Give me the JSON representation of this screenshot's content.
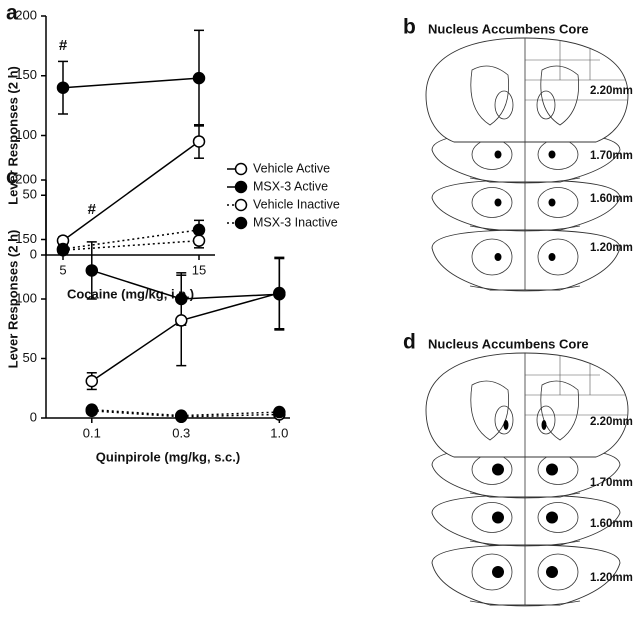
{
  "chart_data": [
    {
      "type": "line",
      "panel": "a",
      "xlabel": "Cocaine (mg/kg, i.p.)",
      "ylabel": "Lever Responses (2 h)",
      "categories": [
        "5",
        "15"
      ],
      "ylim": [
        0,
        200
      ],
      "yticks": [
        0,
        50,
        100,
        150,
        200
      ],
      "annotation": "#",
      "legend": "right",
      "series": [
        {
          "name": "Vehicle Active",
          "color": "#000000",
          "marker": "open",
          "dash": "solid",
          "values": [
            12,
            95
          ],
          "errors": [
            3,
            14
          ]
        },
        {
          "name": "MSX-3 Active",
          "color": "#000000",
          "marker": "filled",
          "dash": "solid",
          "values": [
            140,
            148
          ],
          "errors": [
            22,
            40
          ]
        },
        {
          "name": "Vehicle Inactive",
          "color": "#000000",
          "marker": "open",
          "dash": "dotted",
          "values": [
            4,
            12
          ],
          "errors": [
            2,
            6
          ]
        },
        {
          "name": "MSX-3 Inactive",
          "color": "#000000",
          "marker": "filled",
          "dash": "dotted",
          "values": [
            5,
            21
          ],
          "errors": [
            2,
            8
          ]
        }
      ]
    },
    {
      "type": "line",
      "panel": "c",
      "xlabel": "Quinpirole (mg/kg, s.c.)",
      "ylabel": "Lever Responses (2 h)",
      "x": [
        0.1,
        0.3,
        1.0
      ],
      "xscale": "log",
      "xlim": [
        0.057,
        1.14
      ],
      "xticks": [
        0.1,
        0.3,
        {
          "value": 1,
          "label": "1.0"
        }
      ],
      "ylim": [
        0,
        200
      ],
      "yticks": [
        0,
        50,
        100,
        150,
        200
      ],
      "annotation": "#",
      "series": [
        {
          "color": "#000000",
          "marker": "open",
          "dash": "solid",
          "values": [
            31,
            82,
            105
          ],
          "errors": [
            7,
            38,
            30
          ]
        },
        {
          "color": "#000000",
          "marker": "filled",
          "dash": "solid",
          "values": [
            124,
            100,
            104
          ],
          "errors": [
            24,
            22,
            30
          ]
        },
        {
          "color": "#000000",
          "marker": "open",
          "dash": "dotted",
          "values": [
            6,
            1,
            3
          ],
          "errors": [
            1,
            1,
            1
          ]
        },
        {
          "color": "#000000",
          "marker": "filled",
          "dash": "dotted",
          "values": [
            7,
            2,
            5
          ],
          "errors": [
            1,
            1,
            1
          ]
        }
      ]
    }
  ],
  "diagrams": [
    {
      "panel": "b",
      "title": "Nucleus Accumbens Core",
      "levels": [
        "2.20mm",
        "1.70mm",
        "1.60mm",
        "1.20mm"
      ]
    },
    {
      "panel": "d",
      "title": "Nucleus Accumbens Core",
      "levels": [
        "2.20mm",
        "1.70mm",
        "1.60mm",
        "1.20mm"
      ]
    }
  ]
}
